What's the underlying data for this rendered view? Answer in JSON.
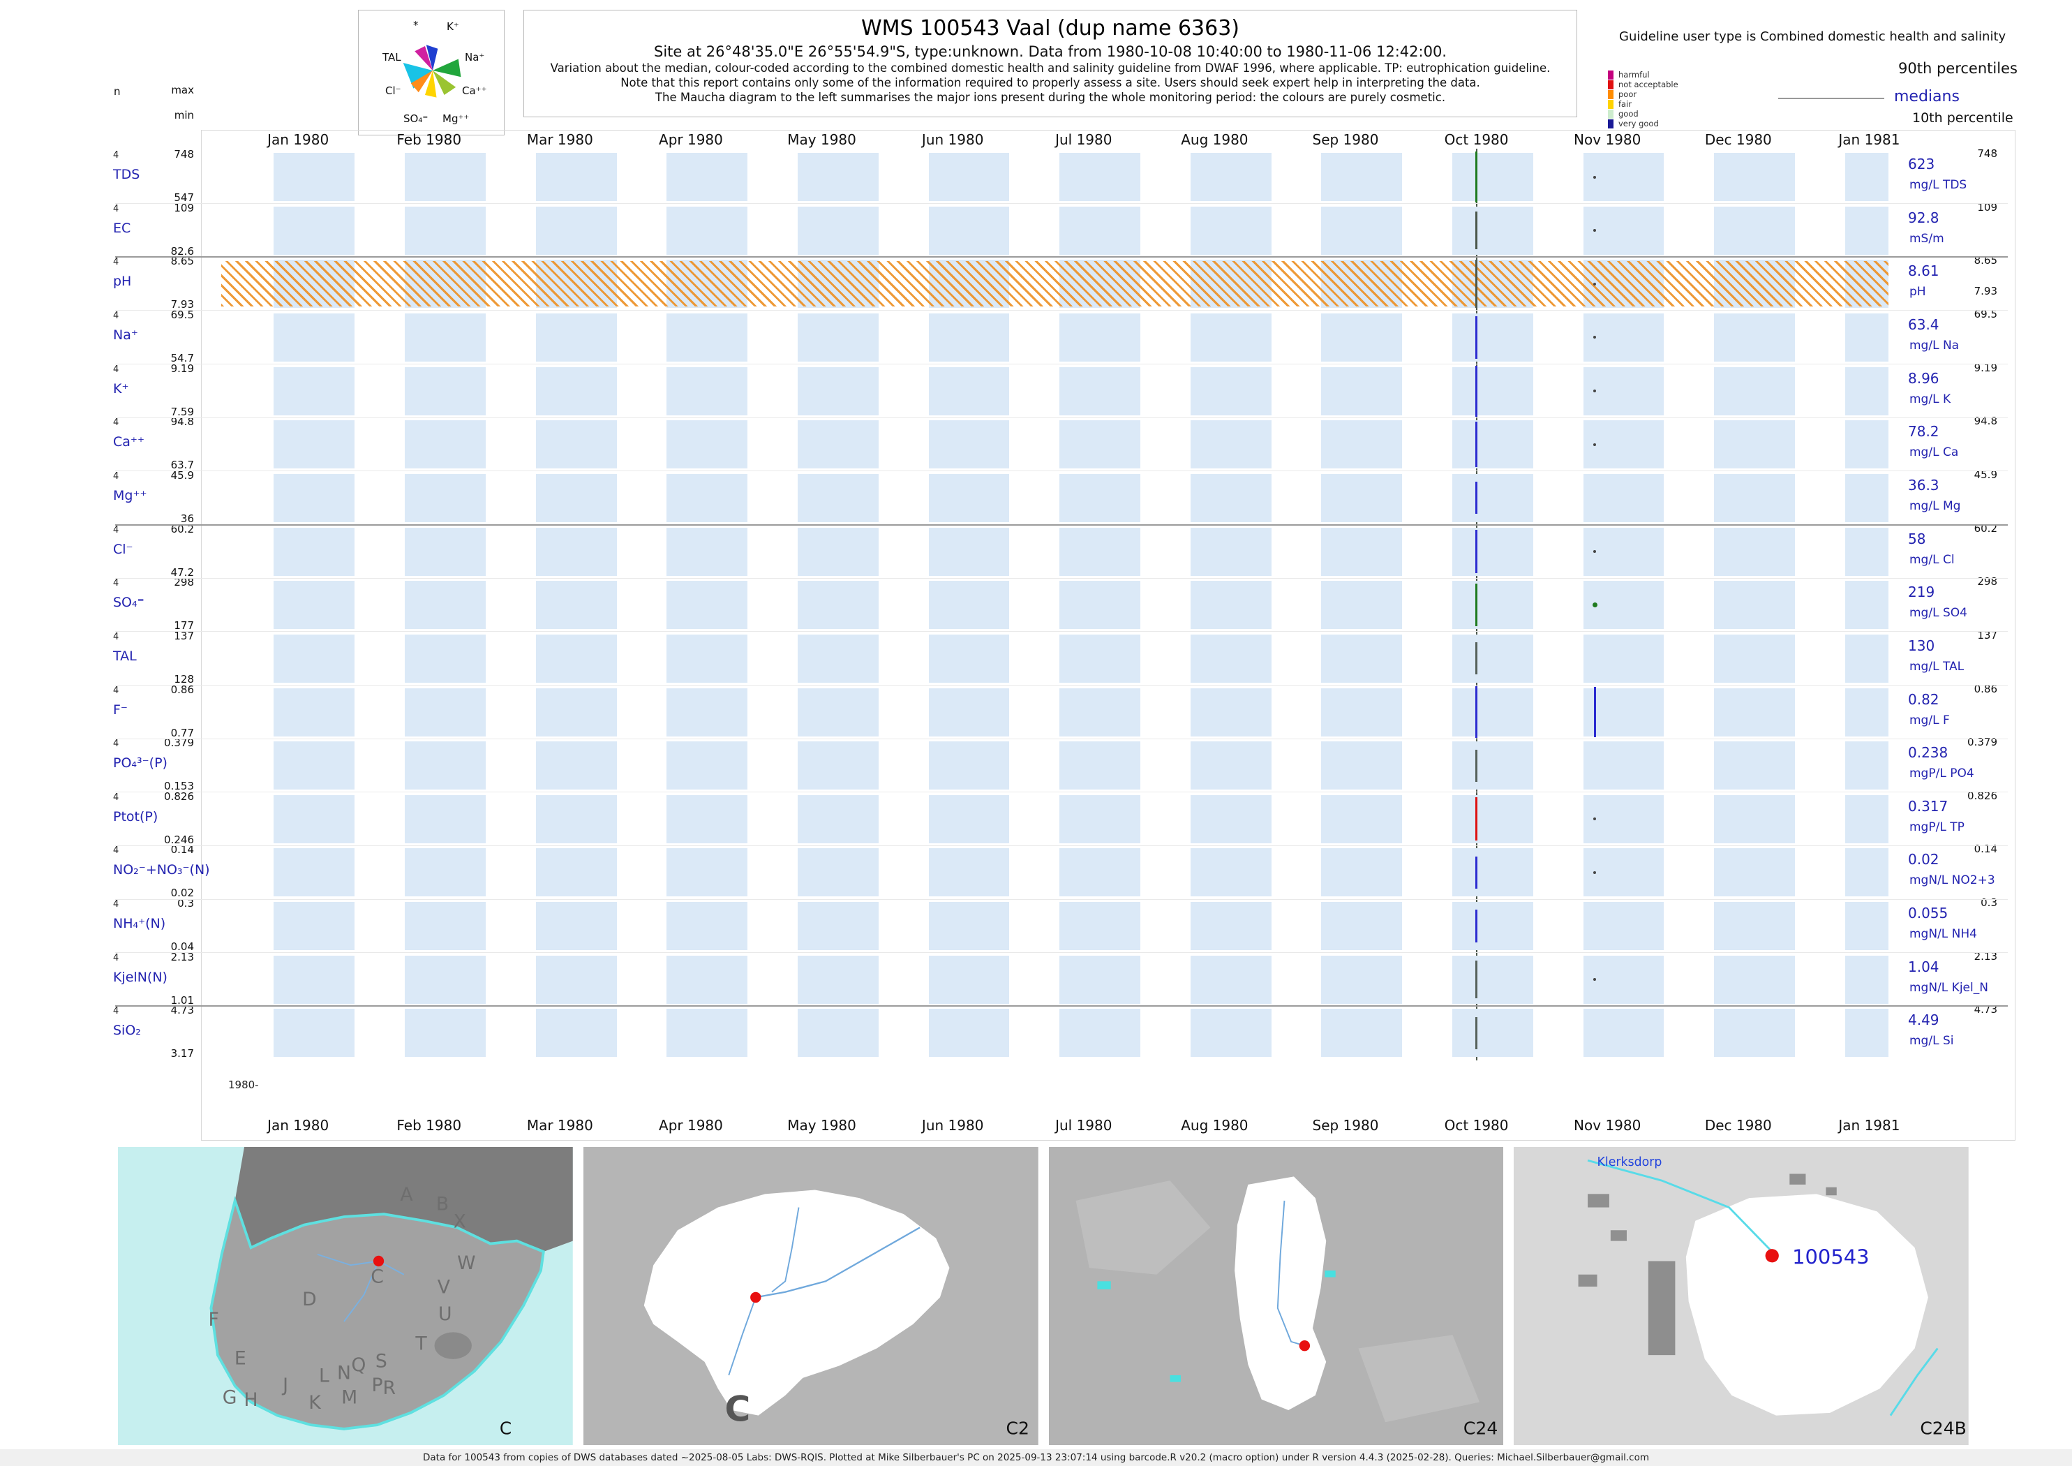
{
  "header": {
    "title": "WMS 100543  Vaal (dup name 6363)",
    "subtitle": "Site at 26°48'35.0\"E 26°55'54.9\"S, type:unknown.  Data from 1980-10-08 10:40:00 to 1980-11-06 12:42:00.",
    "note1": "Variation about the median,  colour-coded according to the combined domestic health and salinity guideline from DWAF 1996, where applicable. TP: eutrophication guideline.",
    "note2": "Note that this report contains only some of the information required to properly assess a site. Users should seek expert help in interpreting the data.",
    "note3": "The Maucha diagram to the left summarises the major ions present during the whole monitoring period: the colours are purely cosmetic."
  },
  "legend": {
    "guideline_title": "Guideline user type is Combined domestic health and salinity",
    "levels": [
      {
        "label": "harmful",
        "color": "#c4007e"
      },
      {
        "label": "not acceptable",
        "color": "#e01010"
      },
      {
        "label": "poor",
        "color": "#ff8c00"
      },
      {
        "label": "fair",
        "color": "#ffd200"
      },
      {
        "label": "good",
        "color": "#cdeccd"
      },
      {
        "label": "very good",
        "color": "#1a1a96"
      }
    ],
    "p90": "90th percentiles",
    "medians": "medians",
    "p10": "10th percentile"
  },
  "maucha": {
    "labels": [
      "*",
      "K⁺",
      "TAL",
      "Na⁺",
      "Cl⁻",
      "Ca⁺⁺",
      "SO₄⁼",
      "Mg⁺⁺"
    ]
  },
  "axis": {
    "n_label": "n",
    "max_label": "max",
    "min_label": "min",
    "origin_label": "1980-",
    "months": [
      "Jan 1980",
      "Feb 1980",
      "Mar 1980",
      "Apr 1980",
      "May 1980",
      "Jun 1980",
      "Jul 1980",
      "Aug 1980",
      "Sep 1980",
      "Oct 1980",
      "Nov 1980",
      "Dec 1980",
      "Jan 1981"
    ]
  },
  "chart_data": {
    "type": "table",
    "title": "WMS 100543 Vaal (dup name 6363)",
    "x_axis_months": [
      "Jan 1980",
      "Feb 1980",
      "Mar 1980",
      "Apr 1980",
      "May 1980",
      "Jun 1980",
      "Jul 1980",
      "Aug 1980",
      "Sep 1980",
      "Oct 1980",
      "Nov 1980",
      "Dec 1980",
      "Jan 1981"
    ],
    "sampling_window": [
      "1980-10-08 10:40:00",
      "1980-11-06 12:42:00"
    ],
    "month_band_color": "#dbe9f7",
    "parameters": [
      {
        "name": "TDS",
        "n": "4",
        "max": "748",
        "min": "547",
        "median": "623",
        "unit": "mg/L TDS",
        "mark_color": "#1e7a1e",
        "nov_mark": "dot",
        "nov_color": "#444"
      },
      {
        "name": "EC",
        "n": "4",
        "max": "109",
        "min": "82.6",
        "median": "92.8",
        "unit": "mS/m",
        "mark_color": "#4a564a",
        "nov_mark": "dot",
        "nov_color": "#444"
      },
      {
        "name": "pH",
        "n": "4",
        "max": "8.65",
        "min": "7.93",
        "median": "8.61",
        "unit": "pH",
        "extra_min": "7.93",
        "guideline_band": true,
        "mark_color": "#4a564a",
        "nov_mark": "dot",
        "nov_color": "#444"
      },
      {
        "name": "Na⁺",
        "n": "4",
        "max": "69.5",
        "min": "54.7",
        "median": "63.4",
        "unit": "mg/L Na",
        "mark_color": "#2b2bd0",
        "nov_mark": "dot",
        "nov_color": "#444"
      },
      {
        "name": "K⁺",
        "n": "4",
        "max": "9.19",
        "min": "7.59",
        "median": "8.96",
        "unit": "mg/L K",
        "mark_color": "#2b2bd0",
        "nov_mark": "dot",
        "nov_color": "#444"
      },
      {
        "name": "Ca⁺⁺",
        "n": "4",
        "max": "94.8",
        "min": "63.7",
        "median": "78.2",
        "unit": "mg/L Ca",
        "mark_color": "#2b2bd0",
        "nov_mark": "dot",
        "nov_color": "#444"
      },
      {
        "name": "Mg⁺⁺",
        "n": "4",
        "max": "45.9",
        "min": "36",
        "median": "36.3",
        "unit": "mg/L Mg",
        "mark_color": "#2b2bd0",
        "nov_mark": null,
        "nov_color": null
      },
      {
        "name": "Cl⁻",
        "n": "4",
        "max": "60.2",
        "min": "47.2",
        "median": "58",
        "unit": "mg/L Cl",
        "mark_color": "#2b2bd0",
        "nov_mark": "dot",
        "nov_color": "#444"
      },
      {
        "name": "SO₄⁼",
        "n": "4",
        "max": "298",
        "min": "177",
        "median": "219",
        "unit": "mg/L SO4",
        "mark_color": "#1e7a1e",
        "nov_mark": "dot",
        "nov_color": "#1e7a1e"
      },
      {
        "name": "TAL",
        "n": "4",
        "max": "137",
        "min": "128",
        "median": "130",
        "unit": "mg/L TAL",
        "mark_color": "#55605a",
        "nov_mark": null,
        "nov_color": null
      },
      {
        "name": "F⁻",
        "n": "4",
        "max": "0.86",
        "min": "0.77",
        "median": "0.82",
        "unit": "mg/L F",
        "mark_color": "#2b2bd0",
        "nov_mark": "line",
        "nov_color": "#2b2bd0"
      },
      {
        "name": "PO₄³⁻(P)",
        "n": "4",
        "max": "0.379",
        "min": "0.153",
        "median": "0.238",
        "unit": "mgP/L PO4",
        "mark_color": "#55605a",
        "nov_mark": null,
        "nov_color": null
      },
      {
        "name": "Ptot(P)",
        "n": "4",
        "max": "0.826",
        "min": "0.246",
        "median": "0.317",
        "unit": "mgP/L TP",
        "mark_color": "#dd1111",
        "nov_mark": "dot",
        "nov_color": "#444"
      },
      {
        "name": "NO₂⁻+NO₃⁻(N)",
        "n": "4",
        "max": "0.14",
        "min": "0.02",
        "median": "0.02",
        "unit": "mgN/L NO2+3",
        "mark_color": "#2b2bd0",
        "nov_mark": "dot",
        "nov_color": "#444"
      },
      {
        "name": "NH₄⁺(N)",
        "n": "4",
        "max": "0.3",
        "min": "0.04",
        "median": "0.055",
        "unit": "mgN/L NH4",
        "mark_color": "#2b2bd0",
        "nov_mark": null,
        "nov_color": null
      },
      {
        "name": "KjelN(N)",
        "n": "4",
        "max": "2.13",
        "min": "1.01",
        "median": "1.04",
        "unit": "mgN/L Kjel_N",
        "mark_color": "#55605a",
        "nov_mark": "dot",
        "nov_color": "#444"
      },
      {
        "name": "SiO₂",
        "n": "4",
        "max": "4.73",
        "min": "3.17",
        "median": "4.49",
        "unit": "mg/L Si",
        "mark_color": "#55605a",
        "nov_mark": null,
        "nov_color": null
      }
    ]
  },
  "maps": {
    "panels": [
      {
        "code": "C",
        "letters": [
          "A",
          "B",
          "X",
          "W",
          "C",
          "D",
          "V",
          "U",
          "T",
          "F",
          "E",
          "L",
          "N",
          "Q",
          "S",
          "J",
          "K",
          "M",
          "P",
          "R",
          "G",
          "H"
        ]
      },
      {
        "code": "C2",
        "big_label": "C"
      },
      {
        "code": "C24"
      },
      {
        "code": "C24B",
        "site_label": "100543",
        "town": "Klerksdorp"
      }
    ]
  },
  "footer": "Data for 100543 from copies of DWS databases dated ~2025-08-05 Labs: DWS-RQIS. Plotted at Mike Silberbauer's PC on 2025-09-13 23:07:14 using barcode.R v20.2 (macro option) under R version 4.4.3 (2025-02-28). Queries: Michael.Silberbauer@gmail.com"
}
